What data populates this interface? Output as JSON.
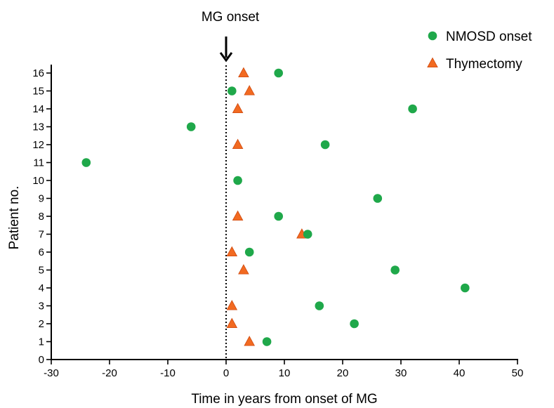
{
  "chart_data": {
    "type": "scatter",
    "title": "",
    "xlabel": "Time in years from onset of MG",
    "ylabel": "Patient no.",
    "xlim": [
      -30,
      50
    ],
    "ylim": [
      0,
      16
    ],
    "xticks": [
      -30,
      -20,
      -10,
      0,
      10,
      20,
      30,
      40,
      50
    ],
    "yticks": [
      0,
      1,
      2,
      3,
      4,
      5,
      6,
      7,
      8,
      9,
      10,
      11,
      12,
      13,
      14,
      15,
      16
    ],
    "grid": false,
    "legend_position": "top-right",
    "annotation": {
      "text": "MG onset",
      "x": 0
    },
    "series": [
      {
        "name": "NMOSD onset",
        "marker": "circle",
        "color": "#1fa84a",
        "points": [
          {
            "x": 7,
            "y": 1
          },
          {
            "x": 22,
            "y": 2
          },
          {
            "x": 16,
            "y": 3
          },
          {
            "x": 41,
            "y": 4
          },
          {
            "x": 29,
            "y": 5
          },
          {
            "x": 4,
            "y": 6
          },
          {
            "x": 14,
            "y": 7
          },
          {
            "x": 9,
            "y": 8
          },
          {
            "x": 26,
            "y": 9
          },
          {
            "x": 2,
            "y": 10
          },
          {
            "x": -24,
            "y": 11
          },
          {
            "x": 17,
            "y": 12
          },
          {
            "x": -6,
            "y": 13
          },
          {
            "x": 32,
            "y": 14
          },
          {
            "x": 1,
            "y": 15
          },
          {
            "x": 9,
            "y": 16
          }
        ]
      },
      {
        "name": "Thymectomy",
        "marker": "triangle",
        "color": "#f26a21",
        "points": [
          {
            "x": 4,
            "y": 1
          },
          {
            "x": 1,
            "y": 2
          },
          {
            "x": 1,
            "y": 3
          },
          {
            "x": 3,
            "y": 5
          },
          {
            "x": 1,
            "y": 6
          },
          {
            "x": 13,
            "y": 7
          },
          {
            "x": 2,
            "y": 8
          },
          {
            "x": 2,
            "y": 12
          },
          {
            "x": 2,
            "y": 14
          },
          {
            "x": 4,
            "y": 15
          },
          {
            "x": 3,
            "y": 16
          }
        ]
      }
    ]
  }
}
